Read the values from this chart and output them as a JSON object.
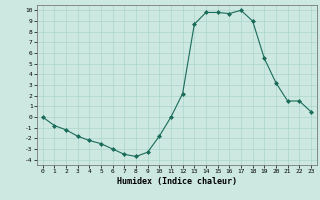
{
  "xlabel": "Humidex (Indice chaleur)",
  "ylabel": "",
  "x_values": [
    0,
    1,
    2,
    3,
    4,
    5,
    6,
    7,
    8,
    9,
    10,
    11,
    12,
    13,
    14,
    15,
    16,
    17,
    18,
    19,
    20,
    21,
    22,
    23
  ],
  "y_values": [
    0.0,
    -0.8,
    -1.2,
    -1.8,
    -2.2,
    -2.5,
    -3.0,
    -3.5,
    -3.7,
    -3.3,
    -1.8,
    0.0,
    2.2,
    8.7,
    9.8,
    9.8,
    9.7,
    10.0,
    9.0,
    5.5,
    3.2,
    1.5,
    1.5,
    0.5
  ],
  "line_color": "#1a6b5a",
  "marker_color": "#1a6b5a",
  "bg_color": "#cce8e0",
  "grid_color": "#aad4cc",
  "ylim": [
    -4.5,
    10.5
  ],
  "xlim": [
    -0.5,
    23.5
  ],
  "yticks": [
    -4,
    -3,
    -2,
    -1,
    0,
    1,
    2,
    3,
    4,
    5,
    6,
    7,
    8,
    9,
    10
  ],
  "xticks": [
    0,
    1,
    2,
    3,
    4,
    5,
    6,
    7,
    8,
    9,
    10,
    11,
    12,
    13,
    14,
    15,
    16,
    17,
    18,
    19,
    20,
    21,
    22,
    23
  ]
}
